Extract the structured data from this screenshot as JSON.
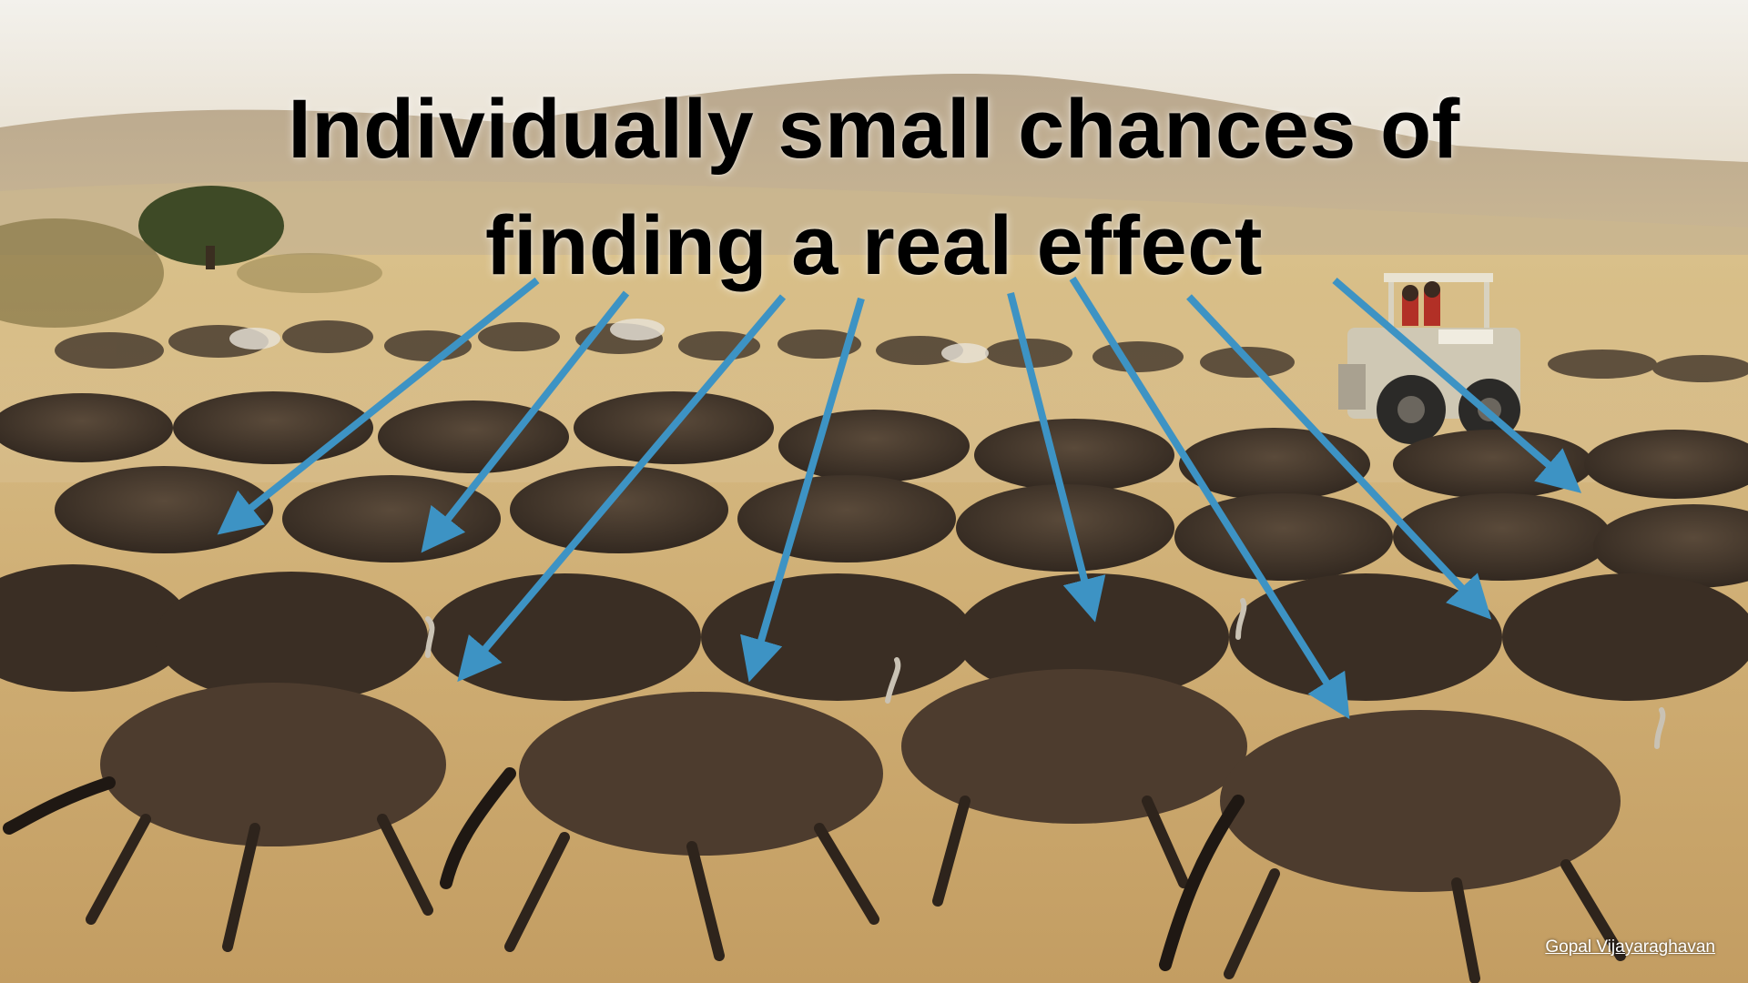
{
  "slide": {
    "title_line_1": "Individually small chances of",
    "title_line_2": "finding a real effect",
    "photo_credit": "Gopal Vijayaraghavan"
  },
  "colors": {
    "arrow": "#3d93c4",
    "title_text": "#000000",
    "credit_text": "#ffffff"
  }
}
